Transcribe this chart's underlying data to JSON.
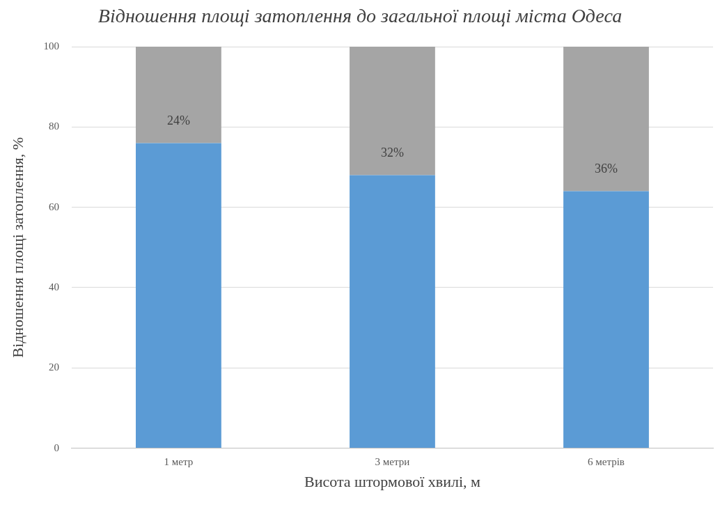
{
  "chart_data": {
    "type": "bar",
    "title": "Відношення площі затоплення до загальної площі міста Одеса",
    "xlabel": "Висота штормової хвилі, м",
    "ylabel": "Відношення площі затоплення, %",
    "categories": [
      "1 метр",
      "3 метри",
      "6 метрів"
    ],
    "stacked": true,
    "series": [
      {
        "color": "#5b9bd5",
        "values": [
          76,
          68,
          64
        ]
      },
      {
        "color": "#a5a5a5",
        "values": [
          24,
          32,
          36
        ],
        "value_labels": [
          "24%",
          "32%",
          "36%"
        ]
      }
    ],
    "ylim": [
      0,
      100
    ],
    "yticks": [
      0,
      20,
      40,
      60,
      80,
      100
    ],
    "grid": "y",
    "legend": false
  }
}
